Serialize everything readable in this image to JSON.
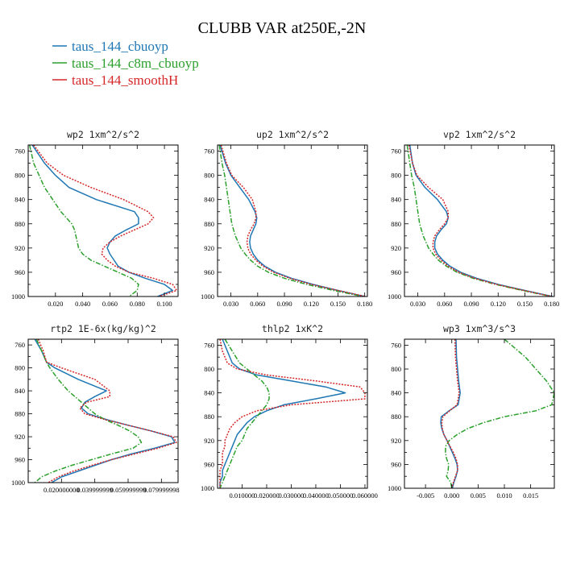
{
  "figure_title": "CLUBB VAR at250E,-2N",
  "legend": [
    {
      "label": "taus_144_cbuoyp",
      "color": "#1f77b4",
      "dash": "solid"
    },
    {
      "label": "taus_144_c8m_cbuoyp",
      "color": "#2ca02c",
      "dash": "dashdot"
    },
    {
      "label": "taus_144_smoothH",
      "color": "#d62728",
      "dash": "dotted"
    }
  ],
  "chart_data": [
    {
      "type": "line",
      "title": "wp2  1xm^2/s^2",
      "xlim": [
        0,
        0.11
      ],
      "ylim": [
        1000,
        750
      ],
      "xticks": [
        0.02,
        0.04,
        0.06,
        0.08,
        0.1
      ],
      "xtick_labels": [
        "0.020",
        "0.040",
        "0.060",
        "0.080",
        "0.100"
      ],
      "yticks": [
        760,
        800,
        840,
        880,
        920,
        960,
        1000
      ],
      "ytick_labels": [
        "760",
        "800",
        "840",
        "880",
        "920",
        "960",
        "1000"
      ],
      "y": [
        750,
        780,
        800,
        820,
        840,
        860,
        870,
        880,
        890,
        900,
        910,
        920,
        930,
        940,
        950,
        960,
        970,
        980,
        990,
        1000
      ],
      "series": [
        {
          "name": "taus_144_cbuoyp",
          "values": [
            0.003,
            0.012,
            0.02,
            0.03,
            0.05,
            0.078,
            0.081,
            0.081,
            0.072,
            0.064,
            0.06,
            0.058,
            0.06,
            0.063,
            0.066,
            0.074,
            0.086,
            0.1,
            0.106,
            0.095
          ]
        },
        {
          "name": "taus_144_c8m_cbuoyp",
          "values": [
            0.001,
            0.004,
            0.008,
            0.012,
            0.018,
            0.024,
            0.028,
            0.032,
            0.034,
            0.035,
            0.036,
            0.037,
            0.04,
            0.046,
            0.056,
            0.066,
            0.076,
            0.081,
            0.08,
            0.074
          ]
        },
        {
          "name": "taus_144_smoothH",
          "values": [
            0.004,
            0.014,
            0.026,
            0.046,
            0.07,
            0.088,
            0.092,
            0.088,
            0.078,
            0.068,
            0.06,
            0.055,
            0.054,
            0.058,
            0.064,
            0.074,
            0.092,
            0.106,
            0.109,
            0.096
          ]
        }
      ]
    },
    {
      "type": "line",
      "title": "up2  1xm^2/s^2",
      "xlim": [
        0.015,
        0.183
      ],
      "ylim": [
        1000,
        750
      ],
      "xticks": [
        0.03,
        0.06,
        0.09,
        0.12,
        0.15,
        0.18
      ],
      "xtick_labels": [
        "0.030",
        "0.060",
        "0.090",
        "0.120",
        "0.150",
        "0.180"
      ],
      "yticks": [
        760,
        800,
        840,
        880,
        920,
        960,
        1000
      ],
      "ytick_labels": [
        "760",
        "800",
        "840",
        "880",
        "920",
        "960",
        "1000"
      ],
      "y": [
        750,
        780,
        800,
        820,
        840,
        860,
        870,
        880,
        890,
        900,
        910,
        920,
        930,
        940,
        950,
        960,
        970,
        980,
        990,
        1000
      ],
      "series": [
        {
          "name": "taus_144_cbuoyp",
          "values": [
            0.018,
            0.024,
            0.03,
            0.04,
            0.05,
            0.057,
            0.059,
            0.058,
            0.055,
            0.052,
            0.051,
            0.052,
            0.055,
            0.06,
            0.068,
            0.08,
            0.098,
            0.122,
            0.15,
            0.18
          ]
        },
        {
          "name": "taus_144_c8m_cbuoyp",
          "values": [
            0.017,
            0.02,
            0.023,
            0.025,
            0.027,
            0.029,
            0.03,
            0.031,
            0.033,
            0.035,
            0.038,
            0.041,
            0.046,
            0.052,
            0.06,
            0.072,
            0.09,
            0.115,
            0.145,
            0.178
          ]
        },
        {
          "name": "taus_144_smoothH",
          "values": [
            0.019,
            0.025,
            0.031,
            0.044,
            0.054,
            0.058,
            0.058,
            0.056,
            0.052,
            0.049,
            0.048,
            0.049,
            0.052,
            0.058,
            0.066,
            0.078,
            0.096,
            0.12,
            0.15,
            0.181
          ]
        }
      ]
    },
    {
      "type": "line",
      "title": "vp2  1xm^2/s^2",
      "xlim": [
        0.015,
        0.183
      ],
      "ylim": [
        1000,
        750
      ],
      "xticks": [
        0.03,
        0.06,
        0.09,
        0.12,
        0.15,
        0.18
      ],
      "xtick_labels": [
        "0.030",
        "0.060",
        "0.090",
        "0.120",
        "0.150",
        "0.180"
      ],
      "yticks": [
        760,
        800,
        840,
        880,
        920,
        960,
        1000
      ],
      "ytick_labels": [
        "760",
        "800",
        "840",
        "880",
        "920",
        "960",
        "1000"
      ],
      "y": [
        750,
        780,
        800,
        820,
        840,
        860,
        870,
        880,
        890,
        900,
        910,
        920,
        930,
        940,
        950,
        960,
        970,
        980,
        990,
        1000
      ],
      "series": [
        {
          "name": "taus_144_cbuoyp",
          "values": [
            0.021,
            0.024,
            0.028,
            0.038,
            0.052,
            0.062,
            0.064,
            0.062,
            0.056,
            0.051,
            0.049,
            0.049,
            0.052,
            0.058,
            0.066,
            0.078,
            0.096,
            0.12,
            0.15,
            0.181
          ]
        },
        {
          "name": "taus_144_c8m_cbuoyp",
          "values": [
            0.018,
            0.021,
            0.023,
            0.026,
            0.028,
            0.03,
            0.031,
            0.032,
            0.034,
            0.036,
            0.039,
            0.042,
            0.047,
            0.053,
            0.062,
            0.074,
            0.092,
            0.117,
            0.147,
            0.18
          ]
        },
        {
          "name": "taus_144_smoothH",
          "values": [
            0.02,
            0.024,
            0.029,
            0.042,
            0.058,
            0.064,
            0.064,
            0.06,
            0.054,
            0.049,
            0.047,
            0.047,
            0.05,
            0.056,
            0.064,
            0.076,
            0.094,
            0.118,
            0.149,
            0.18
          ]
        }
      ]
    },
    {
      "type": "line",
      "title": "rtp2  1E-6x(kg/kg)^2",
      "xlim": [
        0.0,
        0.09
      ],
      "ylim": [
        1000,
        750
      ],
      "xticks": [
        0.02,
        0.04,
        0.06,
        0.08
      ],
      "xtick_labels": [
        "0.020000000",
        "0.039999999",
        "0.059999999",
        "0.079999998"
      ],
      "yticks": [
        760,
        800,
        840,
        880,
        920,
        960,
        1000
      ],
      "ytick_labels": [
        "760",
        "800",
        "840",
        "880",
        "920",
        "960",
        "1000"
      ],
      "y": [
        750,
        770,
        790,
        800,
        820,
        840,
        850,
        860,
        870,
        880,
        890,
        900,
        910,
        920,
        930,
        940,
        950,
        960,
        970,
        980,
        990,
        1000
      ],
      "series": [
        {
          "name": "taus_144_cbuoyp",
          "values": [
            0.004,
            0.008,
            0.011,
            0.016,
            0.03,
            0.047,
            0.04,
            0.034,
            0.032,
            0.036,
            0.047,
            0.06,
            0.074,
            0.086,
            0.088,
            0.076,
            0.062,
            0.05,
            0.04,
            0.03,
            0.02,
            0.014
          ]
        },
        {
          "name": "taus_144_c8m_cbuoyp",
          "values": [
            0.005,
            0.008,
            0.011,
            0.013,
            0.018,
            0.024,
            0.028,
            0.032,
            0.036,
            0.04,
            0.046,
            0.054,
            0.061,
            0.066,
            0.068,
            0.063,
            0.05,
            0.038,
            0.026,
            0.016,
            0.008,
            0.004
          ]
        },
        {
          "name": "taus_144_smoothH",
          "values": [
            0.006,
            0.009,
            0.011,
            0.02,
            0.04,
            0.049,
            0.049,
            0.035,
            0.031,
            0.034,
            0.046,
            0.06,
            0.074,
            0.087,
            0.089,
            0.078,
            0.064,
            0.05,
            0.038,
            0.027,
            0.018,
            0.012
          ]
        }
      ]
    },
    {
      "type": "line",
      "title": "thlp2  1xK^2",
      "xlim": [
        0.0,
        0.061
      ],
      "ylim": [
        1000,
        750
      ],
      "xticks": [
        0.01,
        0.02,
        0.03,
        0.04,
        0.05,
        0.06
      ],
      "xtick_labels": [
        "0.010000",
        "0.020000",
        "0.030000",
        "0.040000",
        "0.050000",
        "0.060000"
      ],
      "yticks": [
        760,
        800,
        840,
        880,
        920,
        960,
        1000
      ],
      "ytick_labels": [
        "760",
        "800",
        "840",
        "880",
        "920",
        "960",
        "1000"
      ],
      "y": [
        750,
        770,
        790,
        800,
        810,
        820,
        830,
        840,
        850,
        860,
        870,
        880,
        890,
        900,
        910,
        920,
        930,
        940,
        950,
        960,
        970,
        980,
        990,
        1000
      ],
      "series": [
        {
          "name": "taus_144_cbuoyp",
          "values": [
            0.002,
            0.004,
            0.006,
            0.009,
            0.016,
            0.03,
            0.044,
            0.052,
            0.04,
            0.027,
            0.02,
            0.015,
            0.012,
            0.01,
            0.008,
            0.007,
            0.006,
            0.005,
            0.004,
            0.003,
            0.002,
            0.002,
            0.001,
            0.001
          ]
        },
        {
          "name": "taus_144_c8m_cbuoyp",
          "values": [
            0.003,
            0.006,
            0.009,
            0.012,
            0.015,
            0.018,
            0.02,
            0.021,
            0.021,
            0.02,
            0.018,
            0.016,
            0.014,
            0.012,
            0.011,
            0.01,
            0.008,
            0.007,
            0.006,
            0.005,
            0.004,
            0.003,
            0.002,
            0.001
          ]
        },
        {
          "name": "taus_144_smoothH",
          "values": [
            0.001,
            0.002,
            0.004,
            0.008,
            0.02,
            0.04,
            0.058,
            0.06,
            0.06,
            0.03,
            0.016,
            0.01,
            0.007,
            0.005,
            0.004,
            0.003,
            0.003,
            0.002,
            0.002,
            0.002,
            0.001,
            0.001,
            0.001,
            0.001
          ]
        }
      ]
    },
    {
      "type": "line",
      "title": "wp3  1xm^3/s^3",
      "xlim": [
        -0.009,
        0.0195
      ],
      "ylim": [
        1000,
        750
      ],
      "xticks": [
        -0.005,
        0.0,
        0.005,
        0.01,
        0.015
      ],
      "xtick_labels": [
        "-0.005",
        "0.000",
        "0.005",
        "0.010",
        "0.015"
      ],
      "yticks": [
        760,
        800,
        840,
        880,
        920,
        960,
        1000
      ],
      "ytick_labels": [
        "760",
        "800",
        "840",
        "880",
        "920",
        "960",
        "1000"
      ],
      "y": [
        750,
        780,
        800,
        820,
        840,
        860,
        870,
        880,
        890,
        900,
        910,
        920,
        930,
        940,
        950,
        960,
        970,
        980,
        990,
        1000
      ],
      "series": [
        {
          "name": "taus_144_cbuoyp",
          "values": [
            0.0008,
            0.0009,
            0.0011,
            0.0013,
            0.0016,
            0.0012,
            -0.0005,
            -0.002,
            -0.0021,
            -0.0019,
            -0.0015,
            -0.0009,
            -0.0004,
            0.0001,
            0.0006,
            0.001,
            0.0011,
            0.0008,
            0.0004,
            0.0001
          ]
        },
        {
          "name": "taus_144_c8m_cbuoyp",
          "values": [
            0.01,
            0.014,
            0.016,
            0.018,
            0.0195,
            0.019,
            0.016,
            0.01,
            0.006,
            0.003,
            0.001,
            -0.0005,
            -0.0012,
            -0.0012,
            -0.001,
            -0.0006,
            -0.0007,
            -0.001,
            -0.0002,
            0.0
          ]
        },
        {
          "name": "taus_144_smoothH",
          "values": [
            0.0006,
            0.0007,
            0.0009,
            0.0011,
            0.0014,
            0.001,
            -0.0004,
            -0.0017,
            -0.0019,
            -0.0018,
            -0.0015,
            -0.0009,
            -0.0003,
            0.0003,
            0.0008,
            0.0011,
            0.0011,
            0.0007,
            0.0003,
            0.0
          ]
        }
      ]
    }
  ]
}
